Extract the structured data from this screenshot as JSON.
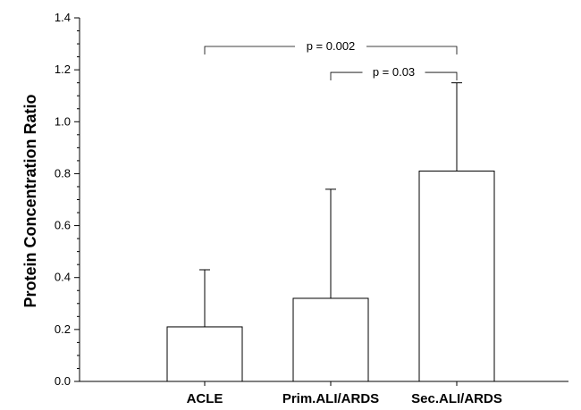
{
  "chart_data": {
    "type": "bar",
    "title": "",
    "xlabel": "",
    "ylabel": "Protein Concentration Ratio",
    "ylim": [
      0,
      1.4
    ],
    "yticks": [
      "0.0",
      "0.2",
      "0.4",
      "0.6",
      "0.8",
      "1.0",
      "1.2",
      "1.4"
    ],
    "yminor_step": 0.05,
    "grid": false,
    "categories": [
      "ACLE",
      "Prim.ALI/ARDS",
      "Sec.ALI/ARDS"
    ],
    "values": [
      0.21,
      0.32,
      0.81
    ],
    "error_upper": [
      0.43,
      0.74,
      1.15
    ],
    "annotations": [
      {
        "label": "p = 0.002",
        "from": 0,
        "to": 2,
        "y": 1.29
      },
      {
        "label": "p = 0.03",
        "from": 1,
        "to": 2,
        "y": 1.19
      }
    ]
  }
}
